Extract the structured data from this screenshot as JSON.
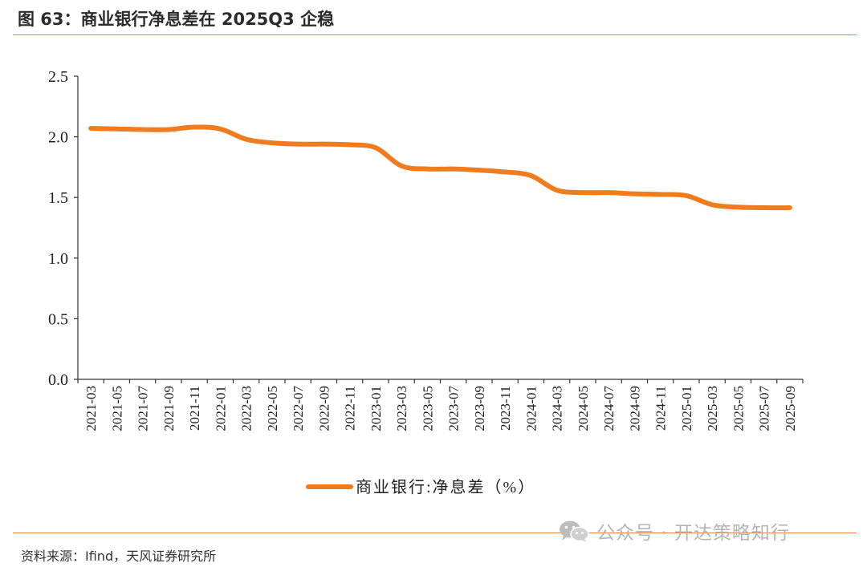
{
  "title": "图 63：商业银行净息差在 2025Q3 企稳",
  "source": "资料来源：Ifind，天风证券研究所",
  "watermark": {
    "icon": "wechat-icon",
    "text": "公众号 · 开达策略知行"
  },
  "colors": {
    "accent_rule": "#e8843b",
    "series": "#f07c1e",
    "axis": "#333333"
  },
  "chart_data": {
    "type": "line",
    "x": [
      "2021-03",
      "2021-05",
      "2021-07",
      "2021-09",
      "2021-11",
      "2022-01",
      "2022-03",
      "2022-05",
      "2022-07",
      "2022-09",
      "2022-11",
      "2023-01",
      "2023-03",
      "2023-05",
      "2023-07",
      "2023-09",
      "2023-11",
      "2024-01",
      "2024-03",
      "2024-05",
      "2024-07",
      "2024-09",
      "2024-11",
      "2025-01",
      "2025-03",
      "2025-05",
      "2025-07",
      "2025-09"
    ],
    "series": [
      {
        "name": "商业银行:净息差（%）",
        "values": [
          2.07,
          2.065,
          2.06,
          2.06,
          2.08,
          2.065,
          1.98,
          1.95,
          1.94,
          1.94,
          1.935,
          1.91,
          1.76,
          1.735,
          1.735,
          1.725,
          1.71,
          1.68,
          1.56,
          1.54,
          1.54,
          1.53,
          1.525,
          1.515,
          1.44,
          1.42,
          1.415,
          1.415
        ]
      }
    ],
    "yticks": [
      "0.0",
      "0.5",
      "1.0",
      "1.5",
      "2.0",
      "2.5"
    ],
    "ylim": [
      0,
      2.5
    ],
    "grid": false,
    "legend": "bottom-center"
  }
}
